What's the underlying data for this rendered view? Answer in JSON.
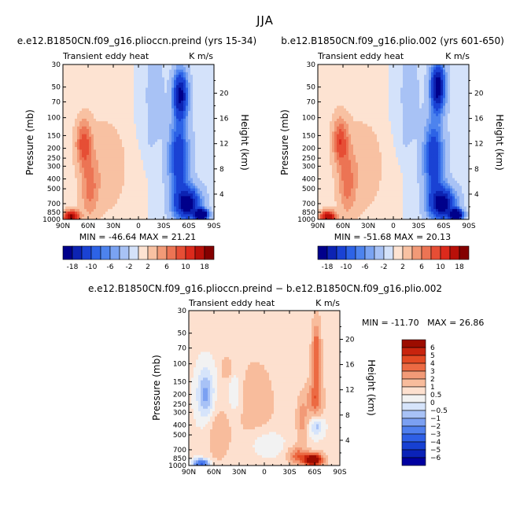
{
  "figure": {
    "season": "JJA",
    "diff_minmax": "MIN = -11.70   MAX = 26.86"
  },
  "chart_data": [
    {
      "type": "heatmap",
      "title": "e.e12.B1850CN.f09_g16.plioccn.preind (yrs 15-34)",
      "subtitle_left": "Transient eddy heat",
      "subtitle_right": "K m/s",
      "xlabel": "",
      "ylabel": "Pressure (mb)",
      "ylabel_right": "Height (km)",
      "x_ticks": [
        "90N",
        "60N",
        "30N",
        "0",
        "30S",
        "60S",
        "90S"
      ],
      "x_tick_values": [
        90,
        60,
        30,
        0,
        -30,
        -60,
        -90
      ],
      "xlim": [
        90,
        -90
      ],
      "y_ticks": [
        "30",
        "50",
        "70",
        "100",
        "150",
        "200",
        "250",
        "300",
        "400",
        "500",
        "700",
        "850",
        "1000"
      ],
      "y_tick_values": [
        30,
        50,
        70,
        100,
        150,
        200,
        250,
        300,
        400,
        500,
        700,
        850,
        1000
      ],
      "ylim": [
        1000,
        30
      ],
      "height_ticks": [
        "4",
        "8",
        "12",
        "16",
        "20"
      ],
      "height_tick_values": [
        4,
        8,
        12,
        16,
        20
      ],
      "min": -46.64,
      "max": 21.21,
      "minmax_label": "MIN = -46.64   MAX = 21.21",
      "colorbar_levels": [
        "-18",
        "-10",
        "-6",
        "-2",
        "2",
        "6",
        "10",
        "18"
      ],
      "features": [
        {
          "lat": 80,
          "p": 950,
          "value": 18,
          "dlat": 9,
          "dlogp": 0.06
        },
        {
          "lat": 65,
          "p": 180,
          "value": 8,
          "dlat": 9,
          "dlogp": 0.22
        },
        {
          "lat": 58,
          "p": 500,
          "value": 5,
          "dlat": 10,
          "dlogp": 0.28
        },
        {
          "lat": 40,
          "p": 300,
          "value": 2,
          "dlat": 25,
          "dlogp": 0.45
        },
        {
          "lat": -50,
          "p": 60,
          "value": -18,
          "dlat": 8,
          "dlogp": 0.22
        },
        {
          "lat": -48,
          "p": 250,
          "value": -12,
          "dlat": 11,
          "dlogp": 0.35
        },
        {
          "lat": -58,
          "p": 700,
          "value": -20,
          "dlat": 14,
          "dlogp": 0.15
        },
        {
          "lat": -75,
          "p": 900,
          "value": -30,
          "dlat": 7,
          "dlogp": 0.05
        },
        {
          "lat": -15,
          "p": 60,
          "value": -2.5,
          "dlat": 12,
          "dlogp": 0.4
        }
      ]
    },
    {
      "type": "heatmap",
      "title": "b.e12.B1850CN.f09_g16.plio.002 (yrs 601-650)",
      "subtitle_left": "Transient eddy heat",
      "subtitle_right": "K m/s",
      "xlabel": "",
      "ylabel": "Pressure (mb)",
      "ylabel_right": "Height (km)",
      "x_ticks": [
        "90N",
        "60N",
        "30N",
        "0",
        "30S",
        "60S",
        "90S"
      ],
      "x_tick_values": [
        90,
        60,
        30,
        0,
        -30,
        -60,
        -90
      ],
      "xlim": [
        90,
        -90
      ],
      "y_ticks": [
        "30",
        "50",
        "70",
        "100",
        "150",
        "200",
        "250",
        "300",
        "400",
        "500",
        "700",
        "850",
        "1000"
      ],
      "y_tick_values": [
        30,
        50,
        70,
        100,
        150,
        200,
        250,
        300,
        400,
        500,
        700,
        850,
        1000
      ],
      "ylim": [
        1000,
        30
      ],
      "height_ticks": [
        "4",
        "8",
        "12",
        "16",
        "20"
      ],
      "height_tick_values": [
        4,
        8,
        12,
        16,
        20
      ],
      "min": -51.68,
      "max": 20.13,
      "minmax_label": "MIN = -51.68   MAX = 20.13",
      "colorbar_levels": [
        "-18",
        "-10",
        "-6",
        "-2",
        "2",
        "6",
        "10",
        "18"
      ],
      "features": [
        {
          "lat": 78,
          "p": 950,
          "value": 16,
          "dlat": 9,
          "dlogp": 0.06
        },
        {
          "lat": 63,
          "p": 170,
          "value": 8,
          "dlat": 9,
          "dlogp": 0.22
        },
        {
          "lat": 55,
          "p": 450,
          "value": 5,
          "dlat": 10,
          "dlogp": 0.3
        },
        {
          "lat": 38,
          "p": 300,
          "value": 2,
          "dlat": 25,
          "dlogp": 0.45
        },
        {
          "lat": -53,
          "p": 50,
          "value": -20,
          "dlat": 8,
          "dlogp": 0.22
        },
        {
          "lat": -48,
          "p": 250,
          "value": -12,
          "dlat": 11,
          "dlogp": 0.35
        },
        {
          "lat": -58,
          "p": 700,
          "value": -20,
          "dlat": 14,
          "dlogp": 0.15
        },
        {
          "lat": -75,
          "p": 900,
          "value": -28,
          "dlat": 7,
          "dlogp": 0.05
        },
        {
          "lat": -15,
          "p": 60,
          "value": -2.5,
          "dlat": 12,
          "dlogp": 0.4
        }
      ]
    },
    {
      "type": "heatmap",
      "title": "e.e12.B1850CN.f09_g16.plioccn.preind − b.e12.B1850CN.f09_g16.plio.002",
      "subtitle_left": "Transient eddy heat",
      "subtitle_right": "K m/s",
      "xlabel": "",
      "ylabel": "Pressure (mb)",
      "ylabel_right": "Height (km)",
      "x_ticks": [
        "90N",
        "60N",
        "30N",
        "0",
        "30S",
        "60S",
        "90S"
      ],
      "x_tick_values": [
        90,
        60,
        30,
        0,
        -30,
        -60,
        -90
      ],
      "xlim": [
        90,
        -90
      ],
      "y_ticks": [
        "30",
        "50",
        "70",
        "100",
        "150",
        "200",
        "250",
        "300",
        "400",
        "500",
        "700",
        "850",
        "1000"
      ],
      "y_tick_values": [
        30,
        50,
        70,
        100,
        150,
        200,
        250,
        300,
        400,
        500,
        700,
        850,
        1000
      ],
      "ylim": [
        1000,
        30
      ],
      "height_ticks": [
        "4",
        "8",
        "12",
        "16",
        "20"
      ],
      "height_tick_values": [
        4,
        8,
        12,
        16,
        20
      ],
      "min": -11.7,
      "max": 26.86,
      "colorbar_levels": [
        "6",
        "5",
        "4",
        "3",
        "2",
        "1",
        "0.5",
        "0",
        "−0.5",
        "−1",
        "−2",
        "−3",
        "−4",
        "−5",
        "−6"
      ],
      "features": [
        {
          "lat": -62,
          "p": 80,
          "value": 3.5,
          "dlat": 5,
          "dlogp": 0.3
        },
        {
          "lat": -60,
          "p": 220,
          "value": 3,
          "dlat": 9,
          "dlogp": 0.18
        },
        {
          "lat": -45,
          "p": 350,
          "value": 2,
          "dlat": 6,
          "dlogp": 0.2
        },
        {
          "lat": -58,
          "p": 880,
          "value": 8,
          "dlat": 11,
          "dlogp": 0.06
        },
        {
          "lat": -40,
          "p": 800,
          "value": 3,
          "dlat": 10,
          "dlogp": 0.08
        },
        {
          "lat": -62,
          "p": 400,
          "value": -1.5,
          "dlat": 8,
          "dlogp": 0.1
        },
        {
          "lat": 70,
          "p": 200,
          "value": -1.8,
          "dlat": 10,
          "dlogp": 0.25
        },
        {
          "lat": 75,
          "p": 950,
          "value": -4,
          "dlat": 9,
          "dlogp": 0.04
        },
        {
          "lat": 45,
          "p": 110,
          "value": 1.2,
          "dlat": 6,
          "dlogp": 0.1
        },
        {
          "lat": 35,
          "p": 200,
          "value": -0.8,
          "dlat": 8,
          "dlogp": 0.2
        },
        {
          "lat": 10,
          "p": 250,
          "value": 0.8,
          "dlat": 25,
          "dlogp": 0.5
        },
        {
          "lat": 0,
          "p": 600,
          "value": -0.8,
          "dlat": 20,
          "dlogp": 0.15
        },
        {
          "lat": 55,
          "p": 500,
          "value": 0.8,
          "dlat": 15,
          "dlogp": 0.3
        }
      ]
    }
  ]
}
